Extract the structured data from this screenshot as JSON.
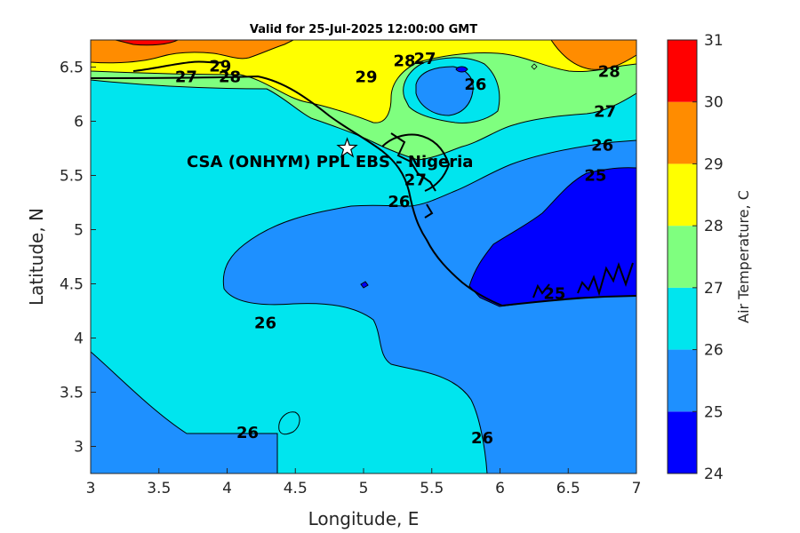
{
  "title": "Valid for 25-Jul-2025 12:00:00 GMT",
  "site_label": "CSA (ONHYM) PPL EBS - Nigeria",
  "chart_data": {
    "type": "heatmap",
    "variable": "Air Temperature",
    "xlabel": "Longitude, E",
    "ylabel": "Latitude, N",
    "colorbar_label": "Air Temperature, C",
    "xlim": [
      3,
      7
    ],
    "ylim": [
      2.75,
      6.75
    ],
    "x_ticks": [
      "3",
      "3.5",
      "4",
      "4.5",
      "5",
      "5.5",
      "6",
      "6.5",
      "7"
    ],
    "y_ticks": [
      "3",
      "3.5",
      "4",
      "4.5",
      "5",
      "5.5",
      "6",
      "6.5"
    ],
    "colorbar": {
      "levels": [
        24,
        25,
        26,
        27,
        28,
        29,
        30,
        31
      ],
      "tick_labels": [
        "24",
        "25",
        "26",
        "27",
        "28",
        "29",
        "30",
        "31"
      ],
      "colors": [
        "#0000ff",
        "#1e90ff",
        "#00e5ee",
        "#7fff7f",
        "#ffff00",
        "#ff8c00",
        "#ff0000",
        "#8b0000"
      ]
    },
    "site_marker": {
      "lon": 4.88,
      "lat": 5.75
    },
    "contour_labels": [
      {
        "text": "29",
        "lon": 3.95,
        "lat": 6.5
      },
      {
        "text": "28",
        "lon": 4.02,
        "lat": 6.4
      },
      {
        "text": "27",
        "lon": 3.7,
        "lat": 6.4
      },
      {
        "text": "29",
        "lon": 5.02,
        "lat": 6.4
      },
      {
        "text": "28",
        "lon": 5.3,
        "lat": 6.55
      },
      {
        "text": "27",
        "lon": 5.45,
        "lat": 6.57
      },
      {
        "text": "26",
        "lon": 5.82,
        "lat": 6.33
      },
      {
        "text": "28",
        "lon": 6.8,
        "lat": 6.45
      },
      {
        "text": "27",
        "lon": 6.77,
        "lat": 6.08
      },
      {
        "text": "26",
        "lon": 6.75,
        "lat": 5.77
      },
      {
        "text": "25",
        "lon": 6.7,
        "lat": 5.49
      },
      {
        "text": "27",
        "lon": 5.38,
        "lat": 5.45
      },
      {
        "text": "26",
        "lon": 5.26,
        "lat": 5.25
      },
      {
        "text": "25",
        "lon": 6.4,
        "lat": 4.4
      },
      {
        "text": "26",
        "lon": 4.28,
        "lat": 4.13
      },
      {
        "text": "26",
        "lon": 4.15,
        "lat": 3.12
      },
      {
        "text": "26",
        "lon": 5.87,
        "lat": 3.07
      }
    ]
  }
}
